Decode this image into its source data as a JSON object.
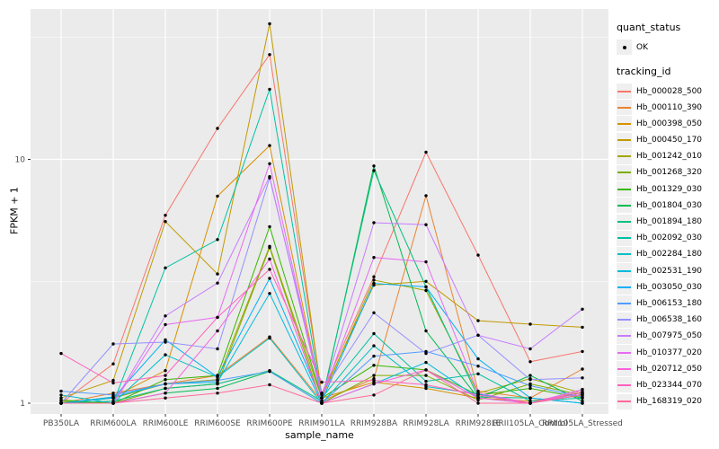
{
  "figure": {
    "xlabel": "sample_name",
    "ylabel": "FPKM + 1",
    "legend": {
      "quant_status_title": "quant_status",
      "quant_status_items": [
        "OK"
      ],
      "tracking_title": "tracking_id"
    },
    "colors": {
      "panel_background": "#EBEBEB",
      "gridline": "#FFFFFF",
      "tick_text": "#4D4D4D",
      "point": "#000000",
      "legend_key_background": "#EFEFEF"
    }
  },
  "chart_data": {
    "type": "line",
    "title": "",
    "xlabel": "sample_name",
    "ylabel": "FPKM + 1",
    "y_scale": "log10",
    "y_ticks": [
      {
        "label": "10",
        "value": 10
      },
      {
        "label": "1",
        "value": 1
      }
    ],
    "y_minor_ticks": [
      3.1623,
      31.6228
    ],
    "ylim_approx": [
      0.9,
      41
    ],
    "grid": "on",
    "legend_position": "right",
    "marker": {
      "legend_label": "OK",
      "shape": "point",
      "color": "#000000"
    },
    "x_categories": [
      "PB350LA",
      "RRIM600LA",
      "RRIM600LE",
      "RRIM600SE",
      "RRIM600PE",
      "RRIM901LA",
      "RRIM928BA",
      "RRIM928LA",
      "RRIM928LE",
      "RRII105LA_Control",
      "RRII105LA_Stressed"
    ],
    "series": [
      {
        "name": "Hb_000028_500",
        "color": "#F8766D",
        "values": [
          1.0,
          1.45,
          5.9,
          13.4,
          26.9,
          1.1,
          3.3,
          10.7,
          4.05,
          1.48,
          1.63
        ]
      },
      {
        "name": "Hb_000110_390",
        "color": "#EA8331",
        "values": [
          1.0,
          1.1,
          1.2,
          1.3,
          1.87,
          1.02,
          1.26,
          7.1,
          1.12,
          1.05,
          1.38
        ]
      },
      {
        "name": "Hb_000398_050",
        "color": "#D89000",
        "values": [
          1.0,
          1.06,
          1.36,
          7.07,
          11.4,
          1.05,
          1.22,
          1.15,
          1.05,
          1.02,
          1.1
        ]
      },
      {
        "name": "Hb_000450_170",
        "color": "#C09B00",
        "values": [
          1.05,
          1.24,
          5.56,
          3.39,
          36.0,
          1.08,
          3.05,
          3.16,
          2.18,
          2.11,
          2.05
        ]
      },
      {
        "name": "Hb_001242_010",
        "color": "#A3A500",
        "values": [
          1.0,
          1.05,
          1.2,
          1.25,
          4.4,
          1.05,
          3.2,
          2.9,
          1.1,
          1.26,
          1.1
        ]
      },
      {
        "name": "Hb_001268_320",
        "color": "#7CAE00",
        "values": [
          1.02,
          1.0,
          1.15,
          1.2,
          4.35,
          1.0,
          1.3,
          1.3,
          1.03,
          1.2,
          1.08
        ]
      },
      {
        "name": "Hb_001329_030",
        "color": "#39B600",
        "values": [
          1.03,
          1.0,
          1.25,
          1.3,
          5.3,
          1.05,
          1.43,
          1.37,
          1.08,
          1.15,
          1.05
        ]
      },
      {
        "name": "Hb_001804_030",
        "color": "#00BB4E",
        "values": [
          1.0,
          1.0,
          1.1,
          1.15,
          1.35,
          1.0,
          9.4,
          1.98,
          1.05,
          1.3,
          1.02
        ]
      },
      {
        "name": "Hb_001894_180",
        "color": "#00BF7D",
        "values": [
          1.0,
          1.02,
          1.15,
          1.2,
          1.36,
          1.02,
          9.0,
          3.0,
          1.06,
          1.05,
          1.0
        ]
      },
      {
        "name": "Hb_002092_030",
        "color": "#00C1A2",
        "values": [
          1.0,
          1.0,
          3.59,
          4.69,
          19.4,
          1.05,
          1.93,
          1.23,
          1.32,
          1.02,
          1.05
        ]
      },
      {
        "name": "Hb_002284_180",
        "color": "#00BFC4",
        "values": [
          1.08,
          1.0,
          1.58,
          1.28,
          1.85,
          1.0,
          1.72,
          1.17,
          1.09,
          1.0,
          1.1
        ]
      },
      {
        "name": "Hb_002531_190",
        "color": "#00BADE",
        "values": [
          1.0,
          1.06,
          1.2,
          1.22,
          2.82,
          1.0,
          1.2,
          1.47,
          1.05,
          1.0,
          1.08
        ]
      },
      {
        "name": "Hb_003050_030",
        "color": "#00B0F6",
        "values": [
          1.0,
          1.05,
          1.82,
          1.28,
          3.25,
          1.02,
          3.1,
          3.0,
          1.52,
          1.05,
          1.0
        ]
      },
      {
        "name": "Hb_006153_180",
        "color": "#519DFF",
        "values": [
          1.12,
          1.08,
          1.2,
          1.24,
          1.35,
          1.0,
          1.56,
          1.63,
          1.42,
          1.18,
          1.06
        ]
      },
      {
        "name": "Hb_006538_160",
        "color": "#9590FF",
        "values": [
          1.0,
          1.75,
          1.78,
          1.67,
          8.4,
          1.1,
          2.35,
          1.6,
          1.9,
          1.25,
          1.27
        ]
      },
      {
        "name": "Hb_007975_050",
        "color": "#C77CFF",
        "values": [
          1.0,
          1.0,
          2.28,
          3.11,
          8.5,
          1.05,
          5.5,
          5.4,
          1.9,
          1.67,
          2.43
        ]
      },
      {
        "name": "Hb_010377_020",
        "color": "#E76BF3",
        "values": [
          1.0,
          1.0,
          2.1,
          2.25,
          9.6,
          1.05,
          3.96,
          3.8,
          1.1,
          1.0,
          1.14
        ]
      },
      {
        "name": "Hb_020712_050",
        "color": "#FA62DB",
        "values": [
          1.0,
          1.0,
          1.1,
          1.98,
          3.9,
          1.0,
          1.2,
          1.37,
          1.05,
          1.0,
          1.1
        ]
      },
      {
        "name": "Hb_023344_070",
        "color": "#FF62BC",
        "values": [
          1.6,
          1.21,
          1.3,
          2.25,
          3.54,
          1.22,
          1.24,
          1.19,
          1.08,
          1.0,
          1.12
        ]
      },
      {
        "name": "Hb_168319_020",
        "color": "#FF6A98",
        "values": [
          1.0,
          1.0,
          1.05,
          1.1,
          1.19,
          1.0,
          1.08,
          1.37,
          1.0,
          1.0,
          1.08
        ]
      }
    ]
  }
}
